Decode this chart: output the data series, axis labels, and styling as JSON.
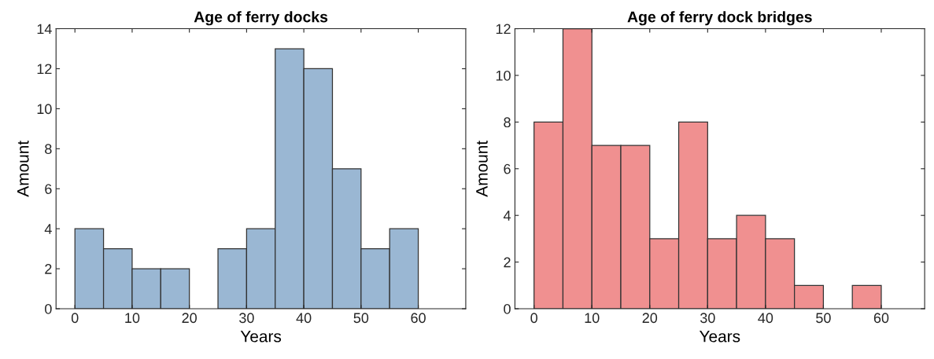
{
  "chart_data": [
    {
      "type": "histogram",
      "title": "Age of ferry docks",
      "xlabel": "Years",
      "ylabel": "Amount",
      "bins": [
        0,
        5,
        10,
        15,
        20,
        25,
        30,
        35,
        40,
        45,
        50,
        55,
        60,
        65
      ],
      "values": [
        4,
        3,
        2,
        2,
        0,
        3,
        4,
        13,
        12,
        7,
        3,
        4,
        0
      ],
      "color": "#9ab7d3",
      "xlim": [
        -3.3,
        68.3
      ],
      "ylim": [
        0,
        14
      ],
      "xticks": [
        0,
        10,
        20,
        30,
        40,
        50,
        60
      ],
      "yticks": [
        0,
        2,
        4,
        6,
        8,
        10,
        12,
        14
      ]
    },
    {
      "type": "histogram",
      "title": "Age of ferry dock bridges",
      "xlabel": "Years",
      "ylabel": "Amount",
      "bins": [
        0,
        5,
        10,
        15,
        20,
        25,
        30,
        35,
        40,
        45,
        50,
        55,
        60,
        65
      ],
      "values": [
        8,
        12,
        7,
        7,
        3,
        8,
        3,
        4,
        3,
        1,
        0,
        1,
        0
      ],
      "color": "#f09090",
      "xlim": [
        -3.3,
        67.5
      ],
      "ylim": [
        0,
        12
      ],
      "xticks": [
        0,
        10,
        20,
        30,
        40,
        50,
        60
      ],
      "yticks": [
        0,
        2,
        4,
        6,
        8,
        10,
        12
      ]
    }
  ]
}
